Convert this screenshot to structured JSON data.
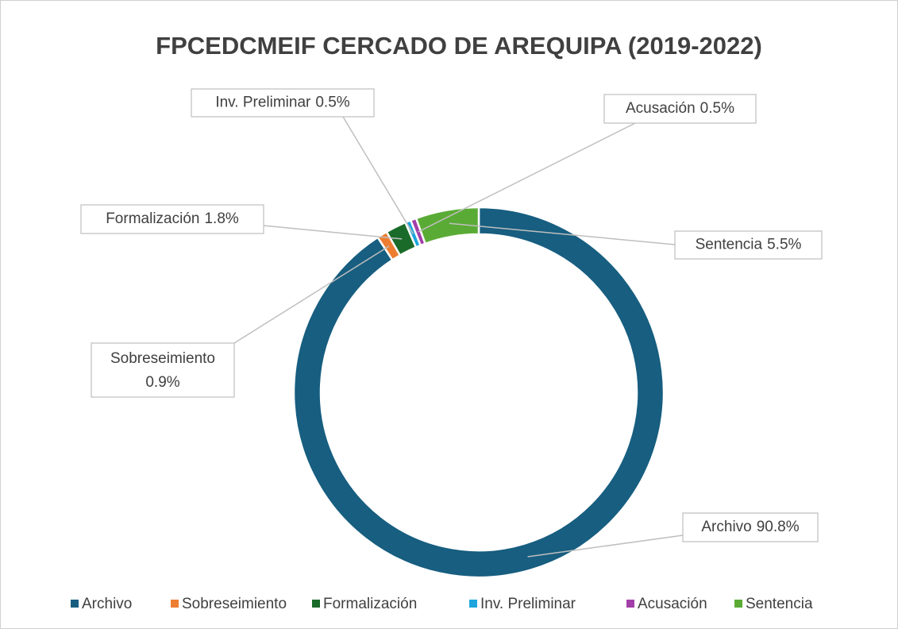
{
  "chart_data": {
    "type": "donut",
    "title": "FPCEDCMEIF CERCADO DE AREQUIPA (2019-2022)",
    "categories": [
      "Archivo",
      "Sobreseimiento",
      "Formalización",
      "Inv. Preliminar",
      "Acusación",
      "Sentencia"
    ],
    "values": [
      90.8,
      0.9,
      1.8,
      0.5,
      0.5,
      5.5
    ],
    "value_labels": [
      "90.8%",
      "0.9%",
      "1.8%",
      "0.5%",
      "0.5%",
      "5.5%"
    ],
    "colors": [
      "#175e80",
      "#ed7d31",
      "#1a6b2a",
      "#1ea5dc",
      "#a33fa8",
      "#5aab35"
    ],
    "legend": "bottom"
  }
}
